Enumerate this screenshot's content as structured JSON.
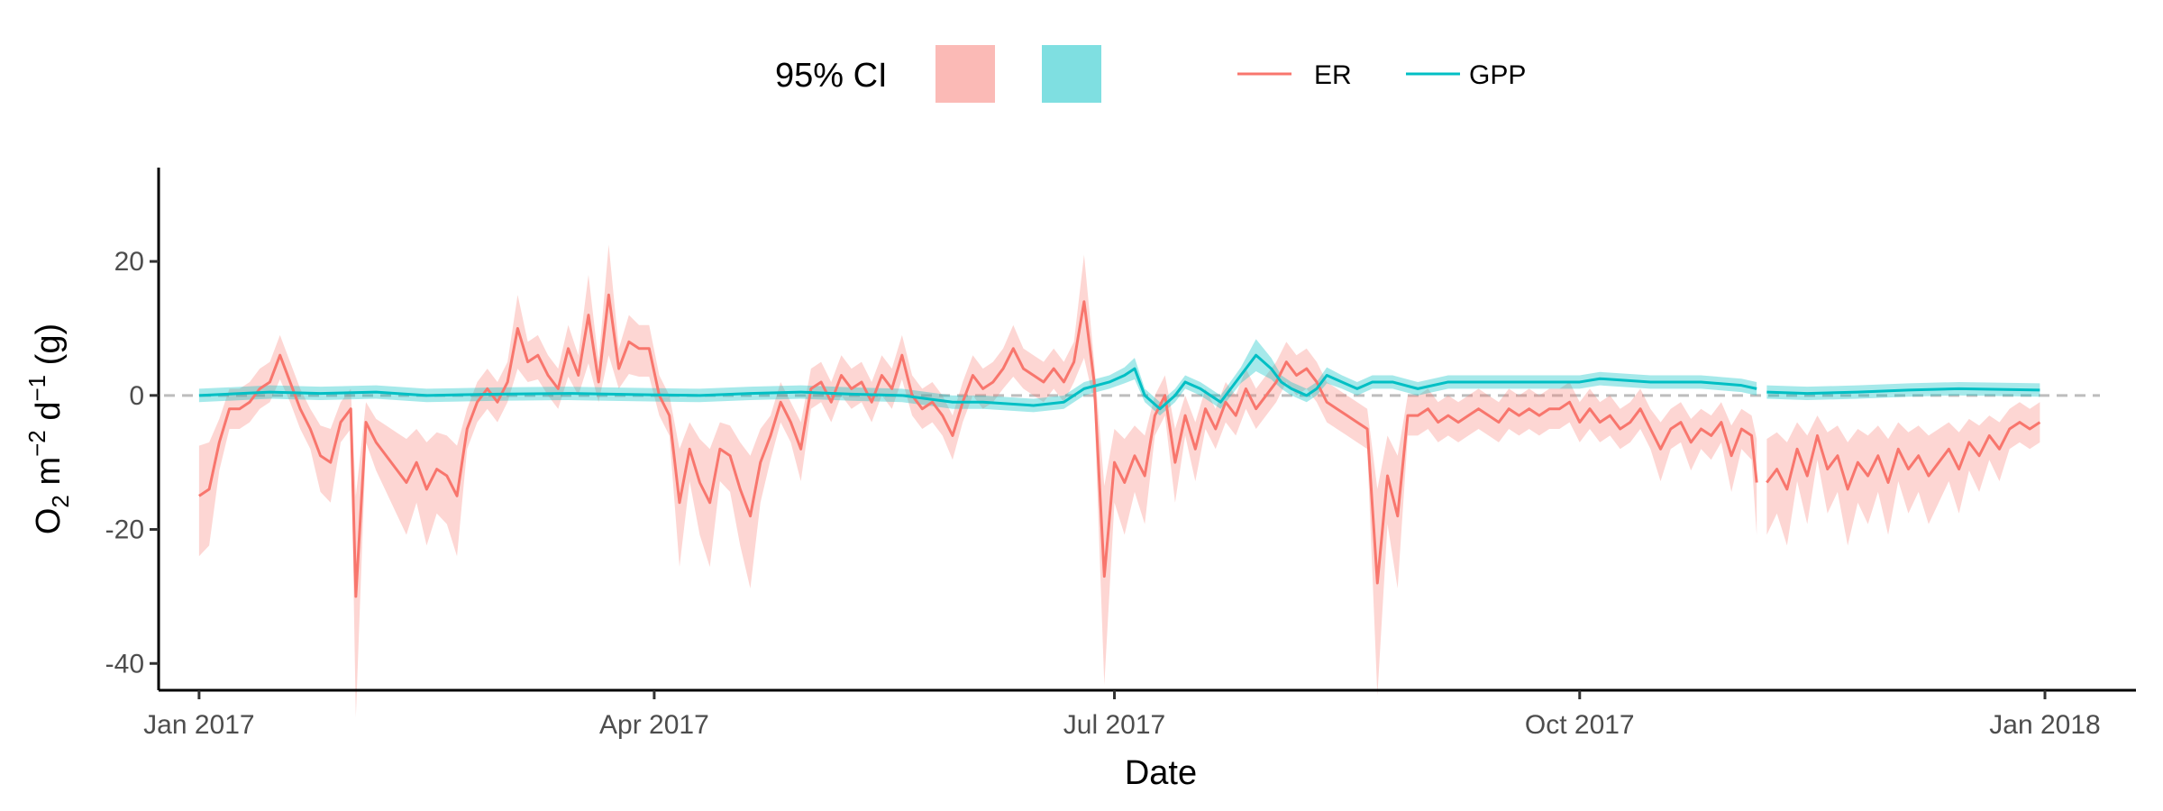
{
  "chart_data": {
    "type": "line",
    "xlabel": "Date",
    "ylabel_parts": [
      "O",
      "2",
      " m",
      "−2",
      " d",
      "−1",
      " (g)"
    ],
    "xlim": [
      "2016-12-24",
      "2018-01-19"
    ],
    "ylim": [
      -44,
      34
    ],
    "x_ticks": [
      {
        "date": "2017-01-01",
        "label": "Jan 2017"
      },
      {
        "date": "2017-04-01",
        "label": "Apr 2017"
      },
      {
        "date": "2017-07-01",
        "label": "Jul 2017"
      },
      {
        "date": "2017-10-01",
        "label": "Oct 2017"
      },
      {
        "date": "2018-01-01",
        "label": "Jan 2018"
      }
    ],
    "y_ticks": [
      20,
      0,
      -20,
      -40
    ],
    "y_tick_labels": [
      "20",
      "0",
      "-20",
      "-40"
    ],
    "zero_line": {
      "value": 0,
      "style": "dashed",
      "color": "#bdbdbd"
    },
    "gap": [
      "2017-11-05",
      "2017-11-07"
    ],
    "legend": {
      "position": "top",
      "ci_title": "95% CI",
      "ci_fills": [
        "#f8766d",
        "#00bfc4"
      ],
      "line_entries": [
        {
          "label": "ER",
          "color": "#f8766d"
        },
        {
          "label": "GPP",
          "color": "#00bfc4"
        }
      ]
    },
    "grid": false,
    "series": [
      {
        "name": "ER",
        "color": "#f8766d",
        "ci_width_note": "",
        "points": [
          [
            "2017-01-01",
            -15
          ],
          [
            "2017-01-03",
            -14
          ],
          [
            "2017-01-05",
            -7
          ],
          [
            "2017-01-07",
            -2
          ],
          [
            "2017-01-09",
            -2
          ],
          [
            "2017-01-11",
            -1
          ],
          [
            "2017-01-13",
            1
          ],
          [
            "2017-01-15",
            2
          ],
          [
            "2017-01-17",
            6
          ],
          [
            "2017-01-19",
            2
          ],
          [
            "2017-01-21",
            -2
          ],
          [
            "2017-01-23",
            -5
          ],
          [
            "2017-01-25",
            -9
          ],
          [
            "2017-01-27",
            -10
          ],
          [
            "2017-01-29",
            -4
          ],
          [
            "2017-01-31",
            -2
          ],
          [
            "2017-02-01",
            -30
          ],
          [
            "2017-02-03",
            -4
          ],
          [
            "2017-02-05",
            -7
          ],
          [
            "2017-02-07",
            -9
          ],
          [
            "2017-02-09",
            -11
          ],
          [
            "2017-02-11",
            -13
          ],
          [
            "2017-02-13",
            -10
          ],
          [
            "2017-02-15",
            -14
          ],
          [
            "2017-02-17",
            -11
          ],
          [
            "2017-02-19",
            -12
          ],
          [
            "2017-02-21",
            -15
          ],
          [
            "2017-02-23",
            -5
          ],
          [
            "2017-02-25",
            -1
          ],
          [
            "2017-02-27",
            1
          ],
          [
            "2017-03-01",
            -1
          ],
          [
            "2017-03-03",
            2
          ],
          [
            "2017-03-05",
            10
          ],
          [
            "2017-03-07",
            5
          ],
          [
            "2017-03-09",
            6
          ],
          [
            "2017-03-11",
            3
          ],
          [
            "2017-03-13",
            1
          ],
          [
            "2017-03-15",
            7
          ],
          [
            "2017-03-17",
            3
          ],
          [
            "2017-03-19",
            12
          ],
          [
            "2017-03-21",
            2
          ],
          [
            "2017-03-23",
            15
          ],
          [
            "2017-03-25",
            4
          ],
          [
            "2017-03-27",
            8
          ],
          [
            "2017-03-29",
            7
          ],
          [
            "2017-03-31",
            7
          ],
          [
            "2017-04-02",
            0
          ],
          [
            "2017-04-04",
            -3
          ],
          [
            "2017-04-06",
            -16
          ],
          [
            "2017-04-08",
            -8
          ],
          [
            "2017-04-10",
            -13
          ],
          [
            "2017-04-12",
            -16
          ],
          [
            "2017-04-14",
            -8
          ],
          [
            "2017-04-16",
            -9
          ],
          [
            "2017-04-18",
            -14
          ],
          [
            "2017-04-20",
            -18
          ],
          [
            "2017-04-22",
            -10
          ],
          [
            "2017-04-24",
            -6
          ],
          [
            "2017-04-26",
            -1
          ],
          [
            "2017-04-28",
            -4
          ],
          [
            "2017-04-30",
            -8
          ],
          [
            "2017-05-02",
            1
          ],
          [
            "2017-05-04",
            2
          ],
          [
            "2017-05-06",
            -1
          ],
          [
            "2017-05-08",
            3
          ],
          [
            "2017-05-10",
            1
          ],
          [
            "2017-05-12",
            2
          ],
          [
            "2017-05-14",
            -1
          ],
          [
            "2017-05-16",
            3
          ],
          [
            "2017-05-18",
            1
          ],
          [
            "2017-05-20",
            6
          ],
          [
            "2017-05-22",
            0
          ],
          [
            "2017-05-24",
            -2
          ],
          [
            "2017-05-26",
            -1
          ],
          [
            "2017-05-28",
            -3
          ],
          [
            "2017-05-30",
            -6
          ],
          [
            "2017-06-01",
            -1
          ],
          [
            "2017-06-03",
            3
          ],
          [
            "2017-06-05",
            1
          ],
          [
            "2017-06-07",
            2
          ],
          [
            "2017-06-09",
            4
          ],
          [
            "2017-06-11",
            7
          ],
          [
            "2017-06-13",
            4
          ],
          [
            "2017-06-15",
            3
          ],
          [
            "2017-06-17",
            2
          ],
          [
            "2017-06-19",
            4
          ],
          [
            "2017-06-21",
            2
          ],
          [
            "2017-06-23",
            5
          ],
          [
            "2017-06-25",
            14
          ],
          [
            "2017-06-27",
            2
          ],
          [
            "2017-06-29",
            -27
          ],
          [
            "2017-07-01",
            -10
          ],
          [
            "2017-07-03",
            -13
          ],
          [
            "2017-07-05",
            -9
          ],
          [
            "2017-07-07",
            -12
          ],
          [
            "2017-07-09",
            -3
          ],
          [
            "2017-07-11",
            0
          ],
          [
            "2017-07-13",
            -10
          ],
          [
            "2017-07-15",
            -3
          ],
          [
            "2017-07-17",
            -8
          ],
          [
            "2017-07-19",
            -2
          ],
          [
            "2017-07-21",
            -5
          ],
          [
            "2017-07-23",
            -1
          ],
          [
            "2017-07-25",
            -3
          ],
          [
            "2017-07-27",
            1
          ],
          [
            "2017-07-29",
            -2
          ],
          [
            "2017-07-31",
            0
          ],
          [
            "2017-08-02",
            2
          ],
          [
            "2017-08-04",
            5
          ],
          [
            "2017-08-06",
            3
          ],
          [
            "2017-08-08",
            4
          ],
          [
            "2017-08-10",
            2
          ],
          [
            "2017-08-12",
            -1
          ],
          [
            "2017-08-14",
            -2
          ],
          [
            "2017-08-16",
            -3
          ],
          [
            "2017-08-18",
            -4
          ],
          [
            "2017-08-20",
            -5
          ],
          [
            "2017-08-22",
            -28
          ],
          [
            "2017-08-24",
            -12
          ],
          [
            "2017-08-26",
            -18
          ],
          [
            "2017-08-28",
            -3
          ],
          [
            "2017-08-30",
            -3
          ],
          [
            "2017-09-01",
            -2
          ],
          [
            "2017-09-03",
            -4
          ],
          [
            "2017-09-05",
            -3
          ],
          [
            "2017-09-07",
            -4
          ],
          [
            "2017-09-09",
            -3
          ],
          [
            "2017-09-11",
            -2
          ],
          [
            "2017-09-13",
            -3
          ],
          [
            "2017-09-15",
            -4
          ],
          [
            "2017-09-17",
            -2
          ],
          [
            "2017-09-19",
            -3
          ],
          [
            "2017-09-21",
            -2
          ],
          [
            "2017-09-23",
            -3
          ],
          [
            "2017-09-25",
            -2
          ],
          [
            "2017-09-27",
            -2
          ],
          [
            "2017-09-29",
            -1
          ],
          [
            "2017-10-01",
            -4
          ],
          [
            "2017-10-03",
            -2
          ],
          [
            "2017-10-05",
            -4
          ],
          [
            "2017-10-07",
            -3
          ],
          [
            "2017-10-09",
            -5
          ],
          [
            "2017-10-11",
            -4
          ],
          [
            "2017-10-13",
            -2
          ],
          [
            "2017-10-15",
            -5
          ],
          [
            "2017-10-17",
            -8
          ],
          [
            "2017-10-19",
            -5
          ],
          [
            "2017-10-21",
            -4
          ],
          [
            "2017-10-23",
            -7
          ],
          [
            "2017-10-25",
            -5
          ],
          [
            "2017-10-27",
            -6
          ],
          [
            "2017-10-29",
            -4
          ],
          [
            "2017-10-31",
            -9
          ],
          [
            "2017-11-02",
            -5
          ],
          [
            "2017-11-04",
            -6
          ],
          [
            "2017-11-05",
            -13
          ],
          [
            "2017-11-07",
            -13
          ],
          [
            "2017-11-09",
            -11
          ],
          [
            "2017-11-11",
            -14
          ],
          [
            "2017-11-13",
            -8
          ],
          [
            "2017-11-15",
            -12
          ],
          [
            "2017-11-17",
            -6
          ],
          [
            "2017-11-19",
            -11
          ],
          [
            "2017-11-21",
            -9
          ],
          [
            "2017-11-23",
            -14
          ],
          [
            "2017-11-25",
            -10
          ],
          [
            "2017-11-27",
            -12
          ],
          [
            "2017-11-29",
            -9
          ],
          [
            "2017-12-01",
            -13
          ],
          [
            "2017-12-03",
            -8
          ],
          [
            "2017-12-05",
            -11
          ],
          [
            "2017-12-07",
            -9
          ],
          [
            "2017-12-09",
            -12
          ],
          [
            "2017-12-11",
            -10
          ],
          [
            "2017-12-13",
            -8
          ],
          [
            "2017-12-15",
            -11
          ],
          [
            "2017-12-17",
            -7
          ],
          [
            "2017-12-19",
            -9
          ],
          [
            "2017-12-21",
            -6
          ],
          [
            "2017-12-23",
            -8
          ],
          [
            "2017-12-25",
            -5
          ],
          [
            "2017-12-27",
            -4
          ],
          [
            "2017-12-29",
            -5
          ],
          [
            "2017-12-31",
            -4
          ]
        ]
      },
      {
        "name": "GPP",
        "color": "#00bfc4",
        "points": [
          [
            "2017-01-01",
            0
          ],
          [
            "2017-01-15",
            0.5
          ],
          [
            "2017-01-25",
            0.3
          ],
          [
            "2017-02-05",
            0.5
          ],
          [
            "2017-02-15",
            0
          ],
          [
            "2017-03-01",
            0.2
          ],
          [
            "2017-03-15",
            0.3
          ],
          [
            "2017-03-31",
            0.1
          ],
          [
            "2017-04-10",
            0
          ],
          [
            "2017-04-20",
            0.3
          ],
          [
            "2017-04-30",
            0.5
          ],
          [
            "2017-05-10",
            0.2
          ],
          [
            "2017-05-20",
            0
          ],
          [
            "2017-05-30",
            -1
          ],
          [
            "2017-06-05",
            -1
          ],
          [
            "2017-06-15",
            -1.5
          ],
          [
            "2017-06-21",
            -1
          ],
          [
            "2017-06-25",
            1
          ],
          [
            "2017-06-30",
            2
          ],
          [
            "2017-07-03",
            3
          ],
          [
            "2017-07-05",
            4
          ],
          [
            "2017-07-07",
            0
          ],
          [
            "2017-07-10",
            -2
          ],
          [
            "2017-07-13",
            0
          ],
          [
            "2017-07-15",
            2
          ],
          [
            "2017-07-18",
            1
          ],
          [
            "2017-07-20",
            0
          ],
          [
            "2017-07-22",
            -1
          ],
          [
            "2017-07-26",
            3
          ],
          [
            "2017-07-29",
            6
          ],
          [
            "2017-08-01",
            4
          ],
          [
            "2017-08-03",
            2
          ],
          [
            "2017-08-05",
            1
          ],
          [
            "2017-08-08",
            0
          ],
          [
            "2017-08-10",
            1
          ],
          [
            "2017-08-12",
            3
          ],
          [
            "2017-08-15",
            2
          ],
          [
            "2017-08-18",
            1
          ],
          [
            "2017-08-21",
            2
          ],
          [
            "2017-08-25",
            2
          ],
          [
            "2017-08-30",
            1
          ],
          [
            "2017-09-05",
            2
          ],
          [
            "2017-09-15",
            2
          ],
          [
            "2017-09-25",
            2
          ],
          [
            "2017-10-01",
            2
          ],
          [
            "2017-10-05",
            2.5
          ],
          [
            "2017-10-15",
            2
          ],
          [
            "2017-10-25",
            2
          ],
          [
            "2017-11-02",
            1.5
          ],
          [
            "2017-11-05",
            1
          ],
          [
            "2017-11-07",
            0.5
          ],
          [
            "2017-11-15",
            0.3
          ],
          [
            "2017-11-25",
            0.5
          ],
          [
            "2017-12-05",
            0.8
          ],
          [
            "2017-12-15",
            1
          ],
          [
            "2017-12-31",
            0.8
          ]
        ]
      }
    ]
  }
}
